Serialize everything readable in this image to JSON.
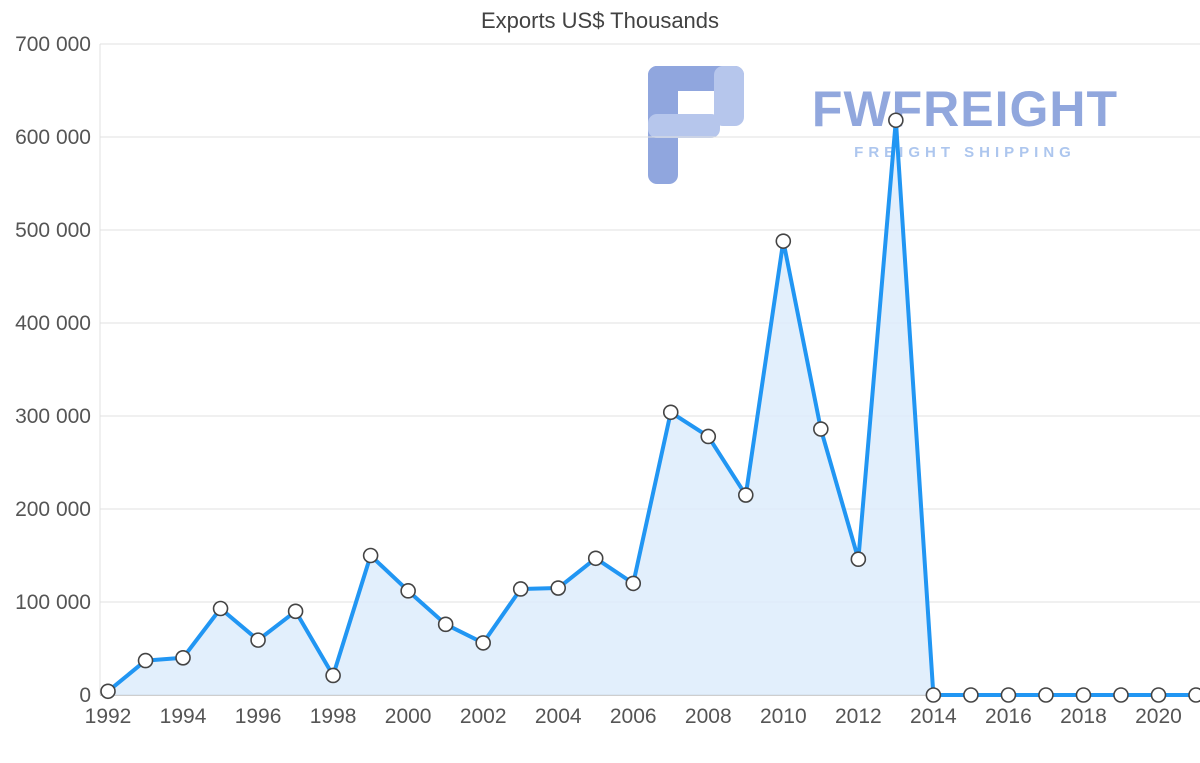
{
  "title": "Exports US$ Thousands",
  "watermark": {
    "title": "FWFREIGHT",
    "subtitle": "FREIGHT SHIPPING",
    "title_color": "#8ca3dc",
    "subtitle_color": "#a9c4ee",
    "icon_color_dark": "#8ba2dd",
    "icon_color_light": "#b3c3ec"
  },
  "colors": {
    "line": "#2196f3",
    "area": "#dcecfb",
    "marker_fill": "#ffffff",
    "marker_stroke": "#444444",
    "grid": "#e0e0e0",
    "axis": "#bdbdbd",
    "tick_text": "#555555",
    "title_text": "#424242",
    "background": "#ffffff"
  },
  "chart_data": {
    "type": "area",
    "title": "Exports US$ Thousands",
    "xlabel": "",
    "ylabel": "",
    "x": [
      1992,
      1993,
      1994,
      1995,
      1996,
      1997,
      1998,
      1999,
      2000,
      2001,
      2002,
      2003,
      2004,
      2005,
      2006,
      2007,
      2008,
      2009,
      2010,
      2011,
      2012,
      2013,
      2014,
      2015,
      2016,
      2017,
      2018,
      2019,
      2020,
      2021
    ],
    "values": [
      4000,
      37000,
      40000,
      93000,
      59000,
      90000,
      21000,
      150000,
      112000,
      76000,
      56000,
      114000,
      115000,
      147000,
      120000,
      304000,
      278000,
      215000,
      488000,
      286000,
      146000,
      618000,
      0,
      0,
      0,
      0,
      0,
      0,
      0,
      0
    ],
    "ylim": [
      0,
      700000
    ],
    "ytick_values": [
      0,
      100000,
      200000,
      300000,
      400000,
      500000,
      600000,
      700000
    ],
    "ytick_labels": [
      "0",
      "100 000",
      "200 000",
      "300 000",
      "400 000",
      "500 000",
      "600 000",
      "700 000"
    ],
    "xtick_values": [
      1992,
      1994,
      1996,
      1998,
      2000,
      2002,
      2004,
      2006,
      2008,
      2010,
      2012,
      2014,
      2016,
      2018,
      2020
    ],
    "grid": "horizontal",
    "legend": false,
    "marker": "circle"
  }
}
